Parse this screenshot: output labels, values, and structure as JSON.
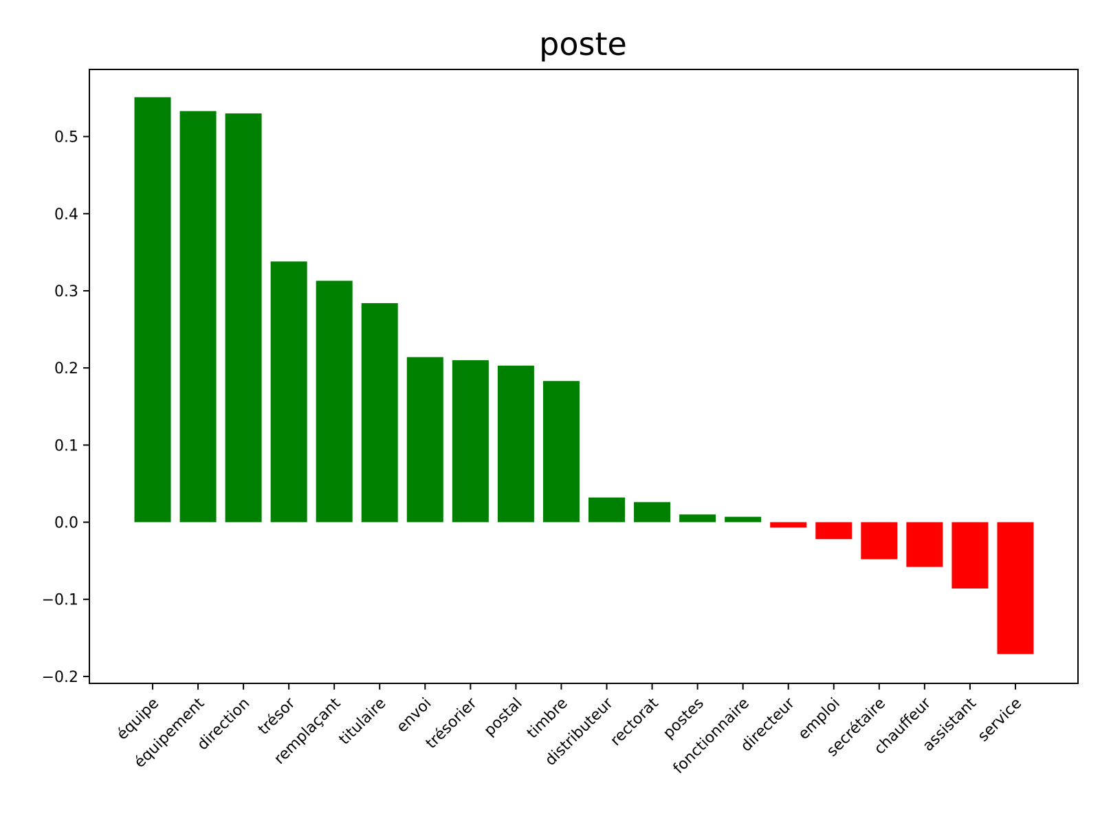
{
  "chart_data": {
    "type": "bar",
    "title": "poste",
    "xlabel": "",
    "ylabel": "",
    "categories": [
      "équipe",
      "équipement",
      "direction",
      "trésor",
      "remplaçant",
      "titulaire",
      "envoi",
      "trésorier",
      "postal",
      "timbre",
      "distributeur",
      "rectorat",
      "postes",
      "fonctionnaire",
      "directeur",
      "emploi",
      "secrétaire",
      "chauffeur",
      "assistant",
      "service"
    ],
    "values": [
      0.551,
      0.533,
      0.53,
      0.338,
      0.313,
      0.284,
      0.214,
      0.21,
      0.203,
      0.183,
      0.032,
      0.026,
      0.01,
      0.007,
      -0.007,
      -0.022,
      -0.048,
      -0.058,
      -0.086,
      -0.171
    ],
    "ylim": [
      -0.209,
      0.587
    ],
    "yticks": [
      -0.2,
      -0.1,
      0.0,
      0.1,
      0.2,
      0.3,
      0.4,
      0.5
    ],
    "ytick_labels": [
      "−0.2",
      "−0.1",
      "0.0",
      "0.1",
      "0.2",
      "0.3",
      "0.4",
      "0.5"
    ],
    "colors": {
      "positive": "#008000",
      "negative": "#ff0000"
    },
    "grid": false,
    "legend": null
  }
}
